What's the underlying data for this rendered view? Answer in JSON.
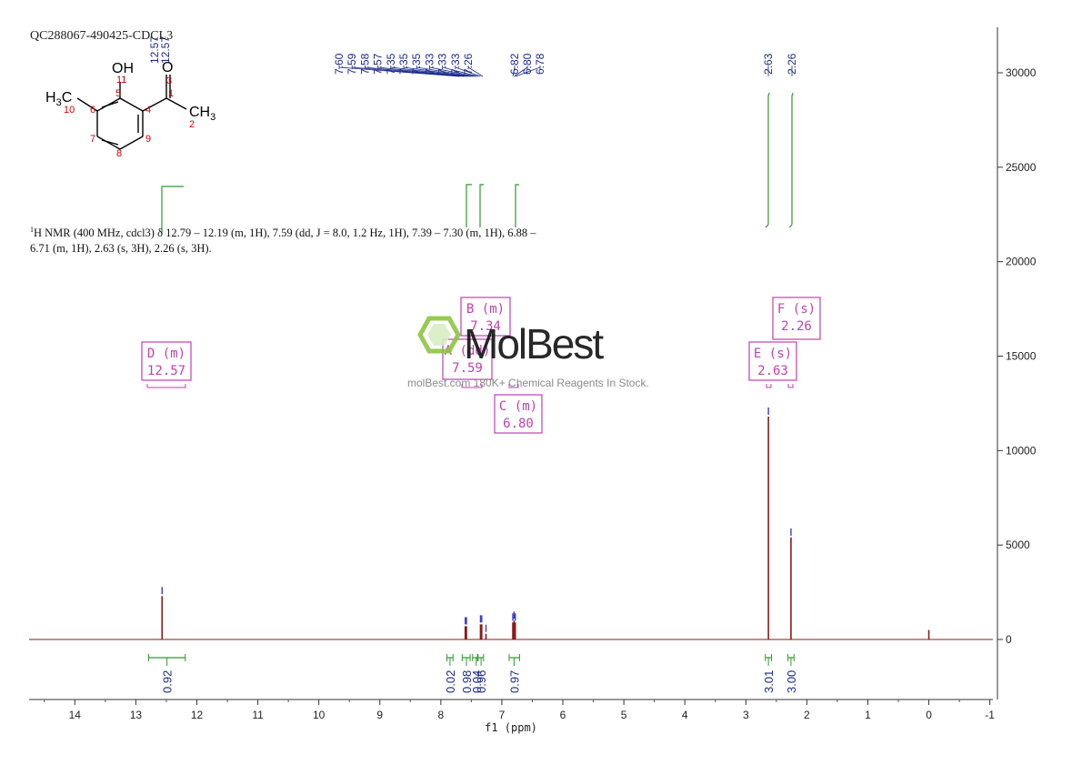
{
  "header": {
    "sample_id": "QC288067-490425-CDCL3"
  },
  "summary": {
    "nucleus_sup": "1",
    "text": "H NMR (400 MHz, cdcl3) δ 12.79 – 12.19 (m, 1H), 7.59 (dd, J = 8.0, 1.2 Hz, 1H), 7.39 – 7.30 (m, 1H), 6.88 – 6.71 (m, 1H), 2.63 (s, 3H), 2.26 (s, 3H)."
  },
  "watermark": {
    "brand": "MolBest",
    "tagline": "molBest.com 180K+ Chemical Reagents In Stock."
  },
  "molecule": {
    "oh": "OH",
    "o": "O",
    "h3c": "H3C",
    "ch3": "CH3",
    "atom_numbers": [
      "1",
      "2",
      "3",
      "4",
      "5",
      "6",
      "7",
      "8",
      "9",
      "10",
      "11"
    ]
  },
  "chart_data": {
    "type": "line",
    "xlabel": "f1 (ppm)",
    "xlim": [
      14.75,
      -1.05
    ],
    "ylim": [
      -3000,
      32000
    ],
    "x_ticks": [
      "14",
      "13",
      "12",
      "11",
      "10",
      "9",
      "8",
      "7",
      "6",
      "5",
      "4",
      "3",
      "2",
      "1",
      "0",
      "-1"
    ],
    "y_ticks": [
      "30000",
      "25000",
      "20000",
      "15000",
      "10000",
      "5000",
      "0"
    ],
    "peaks": [
      {
        "ppm": 12.57,
        "height": 2300
      },
      {
        "ppm": 7.6,
        "height": 700
      },
      {
        "ppm": 7.58,
        "height": 700
      },
      {
        "ppm": 7.35,
        "height": 800
      },
      {
        "ppm": 7.33,
        "height": 800
      },
      {
        "ppm": 7.26,
        "height": 300
      },
      {
        "ppm": 6.82,
        "height": 900
      },
      {
        "ppm": 6.8,
        "height": 1000
      },
      {
        "ppm": 6.78,
        "height": 900
      },
      {
        "ppm": 2.63,
        "height": 11800
      },
      {
        "ppm": 2.26,
        "height": 5400
      },
      {
        "ppm": 0.0,
        "height": 500
      }
    ],
    "peak_labels_left": [
      "7.60",
      "7.59",
      "7.58",
      "7.57",
      "7.35",
      "7.35",
      "7.35",
      "7.33",
      "7.33",
      "7.33",
      "7.26"
    ],
    "peak_labels_mid": [
      "6.82",
      "6.80",
      "6.78"
    ],
    "peak_labels_right": [
      "2.63",
      "2.26"
    ],
    "peak_labels_top": [
      "12.57",
      "12.57"
    ],
    "multiplets": [
      {
        "label": "D (m)",
        "value": "12.57",
        "ppm": 12.57
      },
      {
        "label": "B (m)",
        "value": "7.34",
        "ppm": 7.34
      },
      {
        "label": "A (dd)",
        "value": "7.59",
        "ppm": 7.59
      },
      {
        "label": "C (m)",
        "value": "6.80",
        "ppm": 6.8
      },
      {
        "label": "E (s)",
        "value": "2.63",
        "ppm": 2.63
      },
      {
        "label": "F (s)",
        "value": "2.26",
        "ppm": 2.26
      }
    ],
    "integrals": [
      {
        "ppm": 12.49,
        "from": 12.79,
        "to": 12.19,
        "value": "0.92"
      },
      {
        "ppm": 7.85,
        "from": 7.9,
        "to": 7.8,
        "value": "0.02"
      },
      {
        "ppm": 7.58,
        "from": 7.65,
        "to": 7.52,
        "value": "0.98"
      },
      {
        "ppm": 7.42,
        "from": 7.48,
        "to": 7.4,
        "value": "0.04"
      },
      {
        "ppm": 7.34,
        "from": 7.39,
        "to": 7.3,
        "value": "0.96"
      },
      {
        "ppm": 6.8,
        "from": 6.88,
        "to": 6.71,
        "value": "0.97"
      },
      {
        "ppm": 2.63,
        "from": 2.68,
        "to": 2.58,
        "value": "3.01"
      },
      {
        "ppm": 2.26,
        "from": 2.31,
        "to": 2.21,
        "value": "3.00"
      }
    ],
    "colors": {
      "spectrum": "#8b1a1a",
      "integral": "#2e9a2e",
      "peak_label": "#1a2a8a",
      "box": "#c040b0"
    }
  }
}
